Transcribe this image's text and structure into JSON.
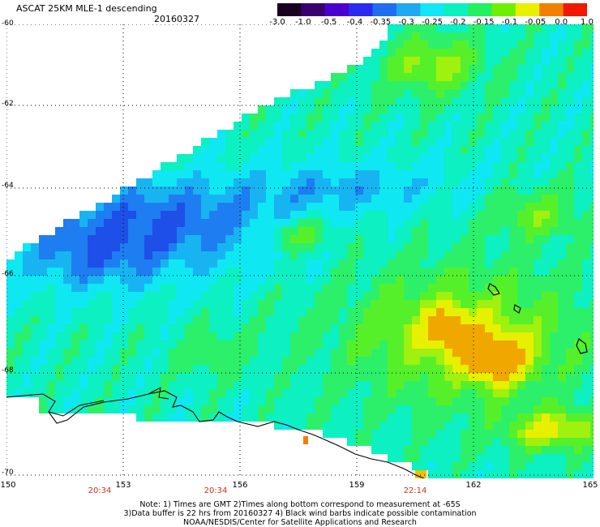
{
  "header": {
    "title": "ASCAT 25KM MLE-1 descending",
    "date": "20160327"
  },
  "colorbar": {
    "ticks": [
      "-3.0",
      "-1.0",
      "-0.5",
      "-0.4",
      "-0.35",
      "-0.3",
      "-0.25",
      "-0.2",
      "-0.15",
      "-0.1",
      "-0.05",
      "0.0",
      "1.0"
    ],
    "colors": [
      "#1a0020",
      "#3a0070",
      "#4b00d0",
      "#2a2af0",
      "#1e6ef0",
      "#1ea8f0",
      "#10e6f5",
      "#0cf0c0",
      "#22f060",
      "#6cf000",
      "#e8f000",
      "#f08000",
      "#f01800"
    ]
  },
  "map": {
    "lat_labels": [
      "-60",
      "-62",
      "-64",
      "-66",
      "-68",
      "-70"
    ],
    "lon_labels": [
      "150",
      "153",
      "156",
      "159",
      "162",
      "165"
    ],
    "time_labels": [
      "20:34",
      "20:34",
      "22:14"
    ]
  },
  "footer": {
    "line1": "Note: 1) Times are GMT 2)Times along bottom correspond to measurement at -65S",
    "line2": "3)Data buffer is 22 hrs from 20160327 4) Black wind barbs indicate possible contamination",
    "line3": "NOAA/NESDIS/Center for Satellite Applications and Research"
  }
}
